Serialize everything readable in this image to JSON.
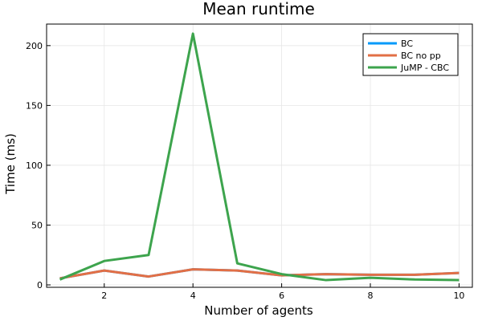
{
  "chart_data": {
    "type": "line",
    "title": "Mean runtime",
    "xlabel": "Number of agents",
    "ylabel": "Time (ms)",
    "x": [
      1,
      2,
      3,
      4,
      5,
      6,
      7,
      8,
      9,
      10
    ],
    "xlim": [
      0.7,
      10.3
    ],
    "ylim": [
      -2,
      218
    ],
    "xticks": [
      2,
      4,
      6,
      8,
      10
    ],
    "yticks": [
      0,
      50,
      100,
      150,
      200
    ],
    "grid": true,
    "legend_position": "top-right",
    "series": [
      {
        "name": "BC",
        "color": "#009AFA",
        "values": [
          5.5,
          12,
          7,
          13,
          12,
          8,
          9,
          8.5,
          8.5,
          10
        ]
      },
      {
        "name": "BC no pp",
        "color": "#E26F46",
        "values": [
          5.5,
          12,
          7,
          13,
          12,
          8,
          9,
          8.5,
          8.5,
          10
        ]
      },
      {
        "name": "JuMP - CBC",
        "color": "#3DA44D",
        "values": [
          4.5,
          20,
          25,
          210,
          18,
          9,
          4,
          6,
          4.5,
          4
        ]
      }
    ]
  }
}
